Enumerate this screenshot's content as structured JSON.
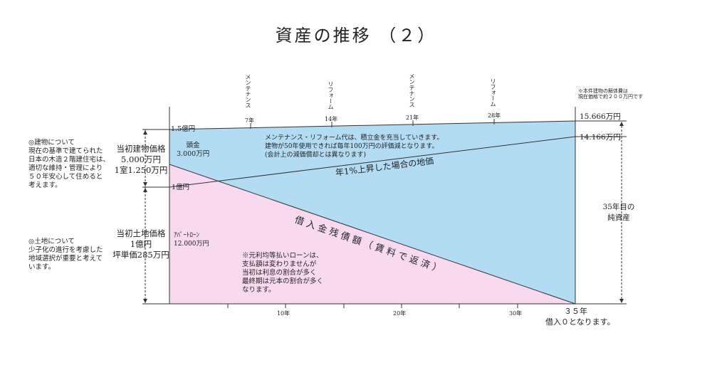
{
  "title": "資産の推移 （２）",
  "top_note": [
    "※本件建物の解体費は",
    "現在価格で約２００万円です"
  ],
  "events": [
    {
      "label": "メンテナンス",
      "year": "7年"
    },
    {
      "label": "リフォーム",
      "year": "14年"
    },
    {
      "label": "メンテナンス",
      "year": "21年"
    },
    {
      "label": "リフォーム",
      "year": "28年"
    }
  ],
  "left_levels": {
    "top": "1.5億円",
    "mid": "1億円"
  },
  "right_values": {
    "top": "15.666万円",
    "mid": "14.166万円"
  },
  "building_note": [
    "◎建物について",
    "現在の基準で建てられた",
    "日本の木造２階建住宅は、",
    "適切な維持・管理により",
    "５０年安心して住めると",
    "考えます。"
  ],
  "land_note": [
    "◎土地について",
    "少子化の進行を考慮した",
    "地域選択が重要と考えて",
    "います。"
  ],
  "building_price": [
    "当初建物価格",
    "5.000万円",
    "1室1.250万円"
  ],
  "land_price": [
    "当初土地価格",
    "1億円",
    "坪単価285万円"
  ],
  "down_payment": [
    "頭金",
    "3.000万円"
  ],
  "loan": [
    "ｱﾊﾟｰﾄﾛｰﾝ",
    "12.000万円"
  ],
  "maintenance_note": [
    "メンテナンス・リフォーム代は、積立金を充当していきます。",
    "建物が50年使用できれば毎年100万円の評価減となります。",
    "(会計上の減価償却とは異なります)"
  ],
  "land_rise_label": "年1%上昇した場合の地価",
  "loan_label": "借入金残債額（賃料で返済）",
  "loan_note": [
    "※元利均等払いローンは、",
    "支払額は変わりませんが",
    "当初は利息の割合が多く",
    "最終期は元本の割合が多く",
    "なります。"
  ],
  "net_assets": [
    "35年目の",
    "純資産"
  ],
  "x_ticks": [
    "10年",
    "20年",
    "30年"
  ],
  "end_year": "３５年",
  "end_note": "借入０となります。",
  "colors": {
    "asset_fill": "#b3dcf2",
    "loan_fill": "#f9d9f0",
    "line": "#333333"
  }
}
